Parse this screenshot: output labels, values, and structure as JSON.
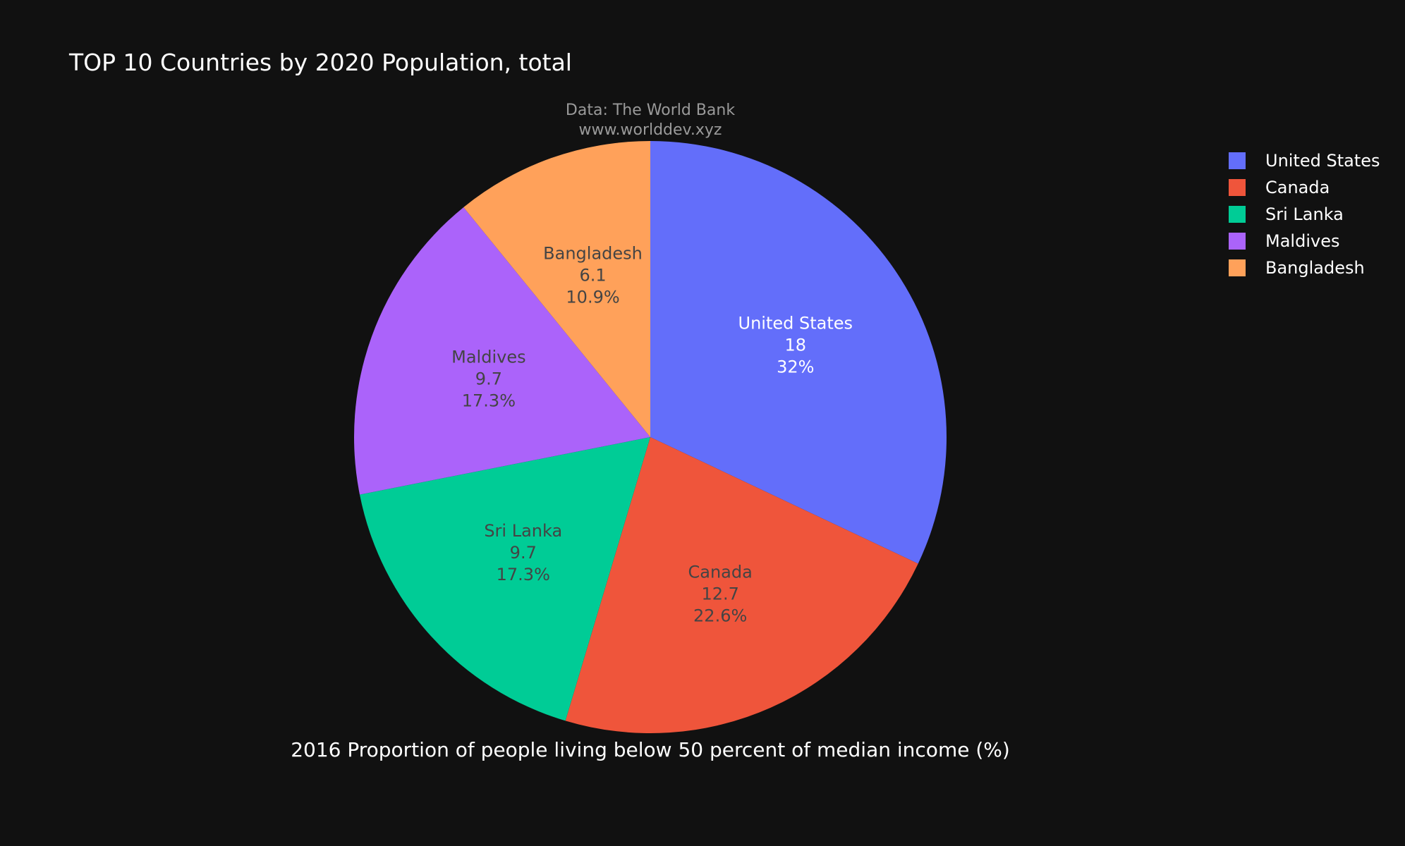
{
  "chart_data": {
    "type": "pie",
    "title": "TOP 10 Countries by 2020 Population, total",
    "source_line1": "Data: The World Bank",
    "source_line2": "www.worlddev.xyz",
    "xlabel": "2016 Proportion of people living below 50 percent of median income (%)",
    "legend_position": "top-right",
    "slices": [
      {
        "label": "United States",
        "value": 18,
        "percent": "32%",
        "color": "#636efa",
        "text_color": "#ffffff"
      },
      {
        "label": "Canada",
        "value": 12.7,
        "percent": "22.6%",
        "color": "#ef553b",
        "text_color": "#444444"
      },
      {
        "label": "Sri Lanka",
        "value": 9.7,
        "percent": "17.3%",
        "color": "#00cc96",
        "text_color": "#444444"
      },
      {
        "label": "Maldives",
        "value": 9.7,
        "percent": "17.3%",
        "color": "#ab63fa",
        "text_color": "#444444"
      },
      {
        "label": "Bangladesh",
        "value": 6.1,
        "percent": "10.9%",
        "color": "#ffa15a",
        "text_color": "#444444"
      }
    ],
    "legend_order": [
      "United States",
      "Canada",
      "Sri Lanka",
      "Maldives",
      "Bangladesh"
    ]
  }
}
